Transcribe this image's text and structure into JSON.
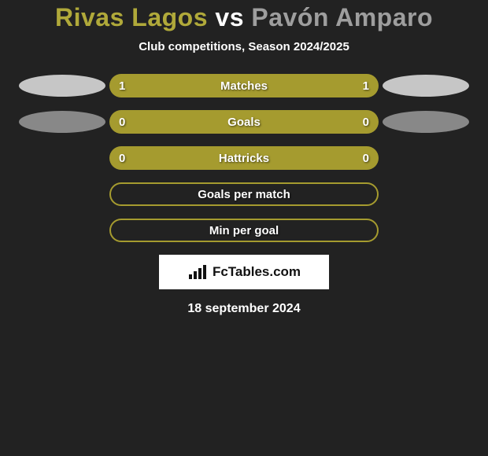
{
  "background_color": "#222222",
  "title": {
    "player1": "Rivas Lagos",
    "vs": "vs",
    "player2": "Pavón Amparo",
    "color_player1": "#b0a93a",
    "color_vs": "#ffffff",
    "color_player2": "#9e9e9e",
    "fontsize": 32
  },
  "subtitle": {
    "text": "Club competitions, Season 2024/2025",
    "color": "#ffffff",
    "fontsize": 15
  },
  "rows": [
    {
      "label": "Matches",
      "left_value": "1",
      "right_value": "1",
      "bar_color": "#a59b2f",
      "left_ellipse_color": "#c6c6c6",
      "right_ellipse_color": "#c6c6c6",
      "outlined": false,
      "has_ellipses": true
    },
    {
      "label": "Goals",
      "left_value": "0",
      "right_value": "0",
      "bar_color": "#a59b2f",
      "left_ellipse_color": "#888888",
      "right_ellipse_color": "#888888",
      "outlined": false,
      "has_ellipses": true
    },
    {
      "label": "Hattricks",
      "left_value": "0",
      "right_value": "0",
      "bar_color": "#a59b2f",
      "left_ellipse_color": "",
      "right_ellipse_color": "",
      "outlined": false,
      "has_ellipses": false
    },
    {
      "label": "Goals per match",
      "left_value": "",
      "right_value": "",
      "bar_color": "#a59b2f",
      "left_ellipse_color": "",
      "right_ellipse_color": "",
      "outlined": true,
      "has_ellipses": false
    },
    {
      "label": "Min per goal",
      "left_value": "",
      "right_value": "",
      "bar_color": "#a59b2f",
      "left_ellipse_color": "",
      "right_ellipse_color": "",
      "outlined": true,
      "has_ellipses": false
    }
  ],
  "brand": {
    "text": "FcTables.com",
    "background": "#ffffff",
    "text_color": "#111111",
    "icon": "chart-bars-icon"
  },
  "date": {
    "text": "18 september 2024",
    "color": "#ffffff",
    "fontsize": 16
  }
}
